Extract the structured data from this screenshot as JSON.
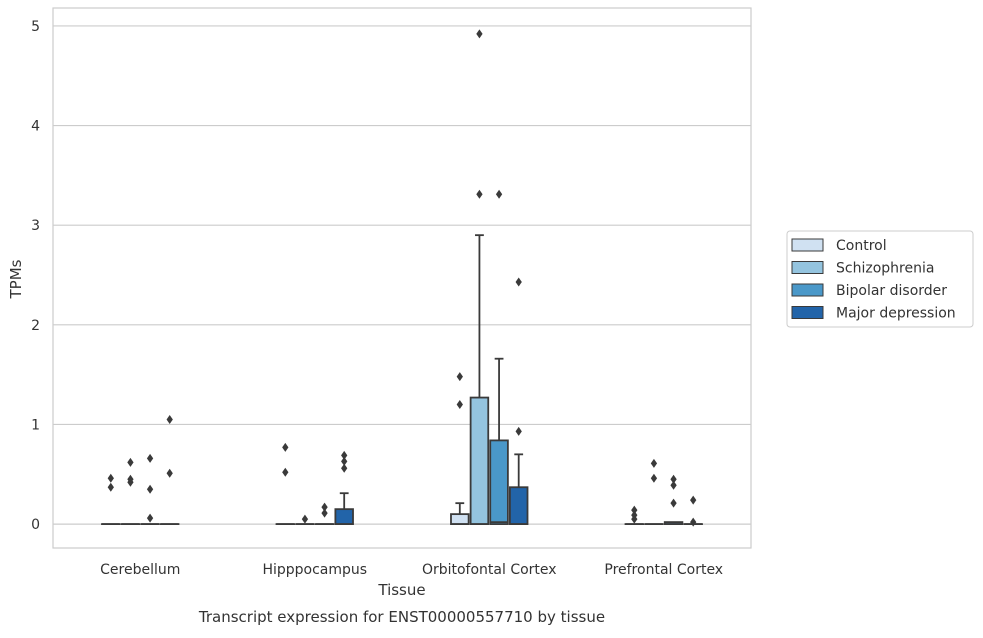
{
  "chart_data": {
    "type": "box",
    "caption": "Transcript expression for ENST00000557710 by tissue",
    "xlabel": "Tissue",
    "ylabel": "TPMs",
    "ylim": [
      -0.24,
      5.18
    ],
    "yticks": [
      0,
      1,
      2,
      3,
      4,
      5
    ],
    "grid": "horizontal",
    "legend_position": "right",
    "categories": [
      "Cerebellum",
      "Hipppocampus",
      "Orbitofontal Cortex",
      "Prefrontal Cortex"
    ],
    "series": [
      {
        "name": "Control",
        "color": "#d0e1f2",
        "boxes": [
          {
            "q1": 0,
            "median": 0,
            "q3": 0,
            "whisker_low": 0,
            "whisker_high": 0,
            "outliers": [
              0.46,
              0.37
            ]
          },
          {
            "q1": 0,
            "median": 0,
            "q3": 0,
            "whisker_low": 0,
            "whisker_high": 0,
            "outliers": [
              0.77,
              0.52
            ]
          },
          {
            "q1": 0,
            "median": 0,
            "q3": 0.1,
            "whisker_low": 0,
            "whisker_high": 0.21,
            "outliers": [
              1.48,
              1.2
            ]
          },
          {
            "q1": 0,
            "median": 0,
            "q3": 0,
            "whisker_low": 0,
            "whisker_high": 0,
            "outliers": [
              0.14,
              0.09,
              0.05
            ]
          }
        ]
      },
      {
        "name": "Schizophrenia",
        "color": "#94c4df",
        "boxes": [
          {
            "q1": 0,
            "median": 0,
            "q3": 0,
            "whisker_low": 0,
            "whisker_high": 0,
            "outliers": [
              0.62,
              0.45,
              0.42
            ]
          },
          {
            "q1": 0,
            "median": 0,
            "q3": 0,
            "whisker_low": 0,
            "whisker_high": 0,
            "outliers": [
              0.05
            ]
          },
          {
            "q1": 0,
            "median": 0,
            "q3": 1.27,
            "whisker_low": 0,
            "whisker_high": 2.9,
            "outliers": [
              4.92,
              3.31
            ]
          },
          {
            "q1": 0,
            "median": 0,
            "q3": 0,
            "whisker_low": 0,
            "whisker_high": 0,
            "outliers": [
              0.61,
              0.46
            ]
          }
        ]
      },
      {
        "name": "Bipolar disorder",
        "color": "#4a98c9",
        "boxes": [
          {
            "q1": 0,
            "median": 0,
            "q3": 0,
            "whisker_low": 0,
            "whisker_high": 0,
            "outliers": [
              0.66,
              0.35,
              0.06
            ]
          },
          {
            "q1": 0,
            "median": 0,
            "q3": 0,
            "whisker_low": 0,
            "whisker_high": 0,
            "outliers": [
              0.17,
              0.11
            ]
          },
          {
            "q1": 0,
            "median": 0.02,
            "q3": 0.84,
            "whisker_low": 0,
            "whisker_high": 1.66,
            "outliers": [
              3.31
            ]
          },
          {
            "q1": 0,
            "median": 0,
            "q3": 0.02,
            "whisker_low": 0,
            "whisker_high": 0.02,
            "outliers": [
              0.45,
              0.39,
              0.21
            ]
          }
        ]
      },
      {
        "name": "Major depression",
        "color": "#2264a9",
        "boxes": [
          {
            "q1": 0,
            "median": 0,
            "q3": 0,
            "whisker_low": 0,
            "whisker_high": 0,
            "outliers": [
              1.05,
              0.51
            ]
          },
          {
            "q1": 0,
            "median": 0,
            "q3": 0.15,
            "whisker_low": 0,
            "whisker_high": 0.31,
            "outliers": [
              0.69,
              0.63,
              0.56
            ]
          },
          {
            "q1": 0,
            "median": 0,
            "q3": 0.37,
            "whisker_low": 0,
            "whisker_high": 0.7,
            "outliers": [
              2.43,
              0.93
            ]
          },
          {
            "q1": 0,
            "median": 0,
            "q3": 0,
            "whisker_low": 0,
            "whisker_high": 0,
            "outliers": [
              0.24,
              0.02
            ]
          }
        ]
      }
    ]
  }
}
